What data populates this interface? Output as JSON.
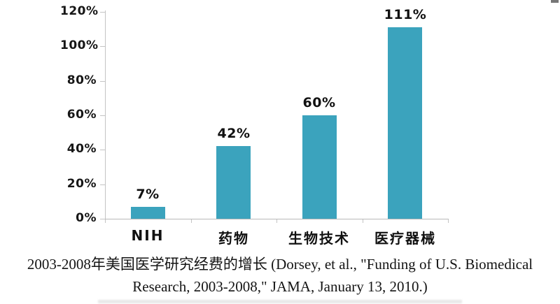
{
  "figure": {
    "caption_line1": "2003-2008年美国医学研究经费的增长 (Dorsey, et al., \"Funding of U.S. Biomedical",
    "caption_line2": "Research, 2003-2008,\" JAMA, January 13, 2010.)"
  },
  "colors": {
    "bar_fill": "#3ba3bd",
    "axis_line": "#c4c4c4",
    "label_text": "#111111"
  },
  "chart_data": {
    "type": "bar",
    "categories": [
      "NIH",
      "药物",
      "生物技术",
      "医疗器械"
    ],
    "values": [
      7,
      42,
      60,
      111
    ],
    "data_labels": [
      "7%",
      "42%",
      "60%",
      "111%"
    ],
    "title": "2003-2008年美国医学研究经费的增长",
    "xlabel": "",
    "ylabel": "",
    "ylim": [
      0,
      120
    ],
    "ytick_step": 20,
    "ytick_labels": [
      "0%",
      "20%",
      "40%",
      "60%",
      "80%",
      "100%",
      "120%"
    ],
    "grid": false,
    "legend": false,
    "source_citation": "(Dorsey, et al., \"Funding of U.S. Biomedical Research, 2003-2008,\" JAMA, January 13, 2010.)"
  }
}
